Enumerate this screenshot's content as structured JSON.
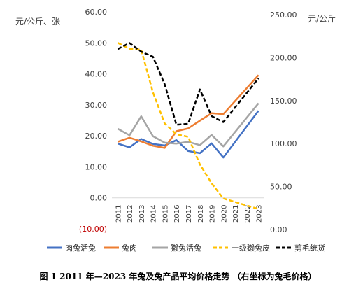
{
  "chart_data": {
    "type": "line",
    "categories": [
      "2011",
      "2012",
      "2013",
      "2014",
      "2015",
      "2016",
      "2017",
      "2018",
      "2019",
      "2020",
      "2021",
      "2022",
      "2023"
    ],
    "left_axis": {
      "title": "元/公斤、张",
      "ylim": [
        -10,
        60
      ],
      "ticks": [
        "(10.00)",
        "0.00",
        "10.00",
        "20.00",
        "30.00",
        "40.00",
        "50.00",
        "60.00"
      ]
    },
    "right_axis": {
      "title": "元/公斤",
      "ylim": [
        0,
        250
      ],
      "ticks": [
        "0.00",
        "50.00",
        "100.00",
        "150.00",
        "200.00",
        "250.00"
      ]
    },
    "series": [
      {
        "name": "肉兔活兔",
        "axis": "left",
        "style": "solid",
        "color": "#4472C4",
        "values": [
          17.5,
          16.3,
          19.0,
          17.4,
          16.9,
          18.6,
          15.1,
          14.4,
          17.6,
          13.0,
          null,
          null,
          28.1
        ]
      },
      {
        "name": "兔肉",
        "axis": "left",
        "style": "solid",
        "color": "#ED7D31",
        "values": [
          18.1,
          19.4,
          18.2,
          16.8,
          16.1,
          21.5,
          22.4,
          24.9,
          27.3,
          27.0,
          null,
          null,
          39.6
        ]
      },
      {
        "name": "獭兔活兔",
        "axis": "left",
        "style": "solid",
        "color": "#A5A5A5",
        "values": [
          22.3,
          20.2,
          26.3,
          19.9,
          17.8,
          17.5,
          18.1,
          17.0,
          20.3,
          16.6,
          null,
          null,
          30.5
        ]
      },
      {
        "name": "一级獭兔皮",
        "axis": "left",
        "style": "dashed",
        "color": "#FFC000",
        "values": [
          50.0,
          48.1,
          47.8,
          34.0,
          24.0,
          20.5,
          19.7,
          10.8,
          4.7,
          -0.2,
          null,
          null,
          -3.6
        ]
      },
      {
        "name": "剪毛统货",
        "axis": "right",
        "style": "dashed",
        "color": "#000000",
        "values": [
          210,
          217,
          207,
          201,
          169,
          122,
          123,
          163,
          132,
          125,
          null,
          null,
          176
        ]
      }
    ]
  },
  "caption": "图 1   2011 年—2023 年兔及兔产品平均价格走势   （右坐标为兔毛价格）"
}
